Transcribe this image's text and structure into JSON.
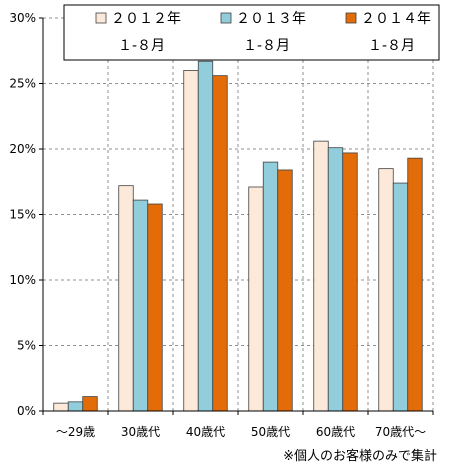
{
  "chart_data": {
    "type": "bar",
    "categories": [
      "～29歳",
      "30歳代",
      "40歳代",
      "50歳代",
      "60歳代",
      "70歳代～"
    ],
    "series": [
      {
        "name": "２０１２年\n１-８月",
        "color": "#fde9d9",
        "values": [
          0.6,
          17.2,
          26.0,
          17.1,
          20.6,
          18.5
        ]
      },
      {
        "name": "２０１３年\n１-８月",
        "color": "#92cddc",
        "values": [
          0.7,
          16.1,
          26.7,
          19.0,
          20.1,
          17.4
        ]
      },
      {
        "name": "２０１４年\n１-８月",
        "color": "#e36c09",
        "values": [
          1.1,
          15.8,
          25.6,
          18.4,
          19.7,
          19.3
        ]
      }
    ],
    "ylim": [
      0,
      30
    ],
    "yticks": [
      0,
      5,
      10,
      15,
      20,
      25,
      30
    ],
    "ytick_labels": [
      "0%",
      "5%",
      "10%",
      "15%",
      "20%",
      "25%",
      "30%"
    ],
    "grid": "vertical-dashed",
    "legend_position": "top",
    "footnote": "※個人のお客様のみで集計"
  }
}
